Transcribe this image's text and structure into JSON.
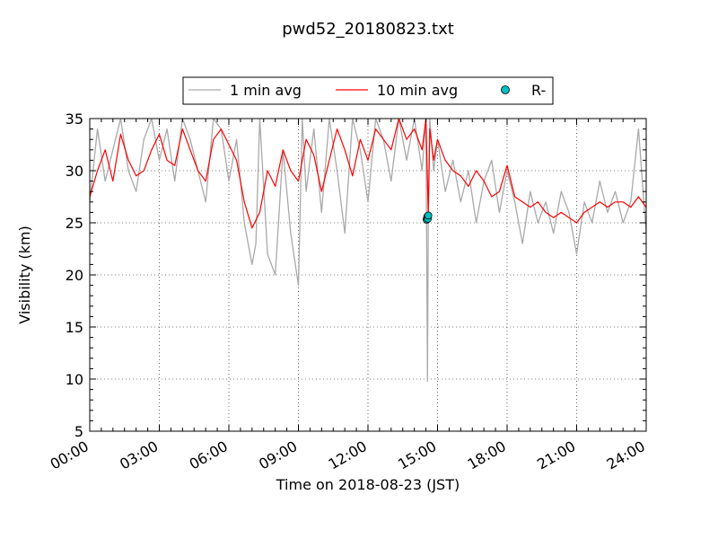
{
  "chart_data": {
    "type": "line",
    "title": "pwd52_20180823.txt",
    "xlabel": "Time on 2018-08-23 (JST)",
    "ylabel": "Visibility (km)",
    "xlim": [
      "00:00",
      "24:00"
    ],
    "ylim": [
      5,
      35
    ],
    "x_ticks": [
      "00:00",
      "03:00",
      "06:00",
      "09:00",
      "12:00",
      "15:00",
      "18:00",
      "21:00",
      "24:00"
    ],
    "y_ticks": [
      5,
      10,
      15,
      20,
      25,
      30,
      35
    ],
    "grid": true,
    "legend": {
      "placement": "top-center",
      "entries": [
        "1 min avg",
        "10 min avg",
        "R-"
      ]
    },
    "series": [
      {
        "name": "1 min avg",
        "color": "#a9a9a9",
        "x": [
          "00:00",
          "00:20",
          "00:40",
          "01:00",
          "01:20",
          "01:40",
          "02:00",
          "02:20",
          "02:40",
          "03:00",
          "03:20",
          "03:40",
          "04:00",
          "04:20",
          "04:40",
          "05:00",
          "05:20",
          "05:40",
          "06:00",
          "06:20",
          "06:40",
          "07:00",
          "07:10",
          "07:20",
          "07:40",
          "08:00",
          "08:20",
          "08:40",
          "09:00",
          "09:10",
          "09:20",
          "09:40",
          "10:00",
          "10:20",
          "10:40",
          "11:00",
          "11:20",
          "11:40",
          "12:00",
          "12:20",
          "12:40",
          "13:00",
          "13:20",
          "13:40",
          "14:00",
          "14:20",
          "14:30",
          "14:34",
          "14:36",
          "14:40",
          "14:50",
          "15:00",
          "15:20",
          "15:40",
          "16:00",
          "16:20",
          "16:40",
          "17:00",
          "17:20",
          "17:40",
          "18:00",
          "18:20",
          "18:40",
          "19:00",
          "19:20",
          "19:40",
          "20:00",
          "20:20",
          "20:40",
          "21:00",
          "21:20",
          "21:40",
          "22:00",
          "22:20",
          "22:40",
          "23:00",
          "23:20",
          "23:40",
          "24:00"
        ],
        "y": [
          27,
          34,
          29,
          32,
          35,
          30,
          28,
          33,
          35,
          31,
          34,
          29,
          35,
          33,
          30,
          27,
          35,
          34,
          29,
          33,
          25,
          21,
          23,
          35,
          22,
          20,
          32,
          24,
          19,
          35,
          28,
          34,
          26,
          35,
          30,
          24,
          35,
          32,
          27,
          35,
          33,
          29,
          35,
          31,
          35,
          30,
          35,
          9.8,
          26,
          35,
          30,
          33,
          28,
          31,
          27,
          30,
          25,
          29,
          31,
          26,
          30,
          27,
          23,
          28,
          25,
          27,
          24,
          28,
          26,
          22,
          27,
          25,
          29,
          26,
          28,
          25,
          27,
          34,
          24
        ]
      },
      {
        "name": "10 min avg",
        "color": "#ff0000",
        "x": [
          "00:00",
          "00:20",
          "00:40",
          "01:00",
          "01:20",
          "01:40",
          "02:00",
          "02:20",
          "02:40",
          "03:00",
          "03:20",
          "03:40",
          "04:00",
          "04:20",
          "04:40",
          "05:00",
          "05:20",
          "05:40",
          "06:00",
          "06:20",
          "06:40",
          "07:00",
          "07:20",
          "07:40",
          "08:00",
          "08:20",
          "08:40",
          "09:00",
          "09:20",
          "09:40",
          "10:00",
          "10:20",
          "10:40",
          "11:00",
          "11:20",
          "11:40",
          "12:00",
          "12:20",
          "12:40",
          "13:00",
          "13:20",
          "13:40",
          "14:00",
          "14:20",
          "14:30",
          "14:36",
          "14:40",
          "14:50",
          "15:00",
          "15:20",
          "15:40",
          "16:00",
          "16:20",
          "16:40",
          "17:00",
          "17:20",
          "17:40",
          "18:00",
          "18:20",
          "18:40",
          "19:00",
          "19:20",
          "19:40",
          "20:00",
          "20:20",
          "20:40",
          "21:00",
          "21:20",
          "21:40",
          "22:00",
          "22:20",
          "22:40",
          "23:00",
          "23:20",
          "23:40",
          "24:00"
        ],
        "y": [
          27.5,
          30,
          32,
          29,
          33.5,
          31,
          29.5,
          30,
          32,
          33.5,
          31,
          30.5,
          34,
          32,
          30,
          29,
          33,
          34,
          32.5,
          31,
          27,
          24.5,
          26,
          30,
          28.5,
          32,
          30,
          29,
          33,
          31.5,
          28,
          31,
          34,
          32,
          29.5,
          33,
          31,
          34,
          33,
          32,
          35,
          33,
          34,
          32,
          35,
          25.8,
          34,
          31,
          33,
          31,
          30,
          29.5,
          28.5,
          30,
          29,
          27.5,
          28,
          30.5,
          27.5,
          27,
          26.5,
          27,
          26,
          25.5,
          26,
          25.5,
          25,
          26,
          26.5,
          27,
          26.5,
          27,
          27,
          26.5,
          27.5,
          26.5
        ]
      },
      {
        "name": "R-",
        "color": "#00bfbf",
        "type": "scatter",
        "x": [
          "14:32",
          "14:33",
          "14:34",
          "14:35",
          "14:36"
        ],
        "y": [
          25.3,
          25.5,
          25.6,
          25.4,
          25.7
        ]
      }
    ]
  }
}
